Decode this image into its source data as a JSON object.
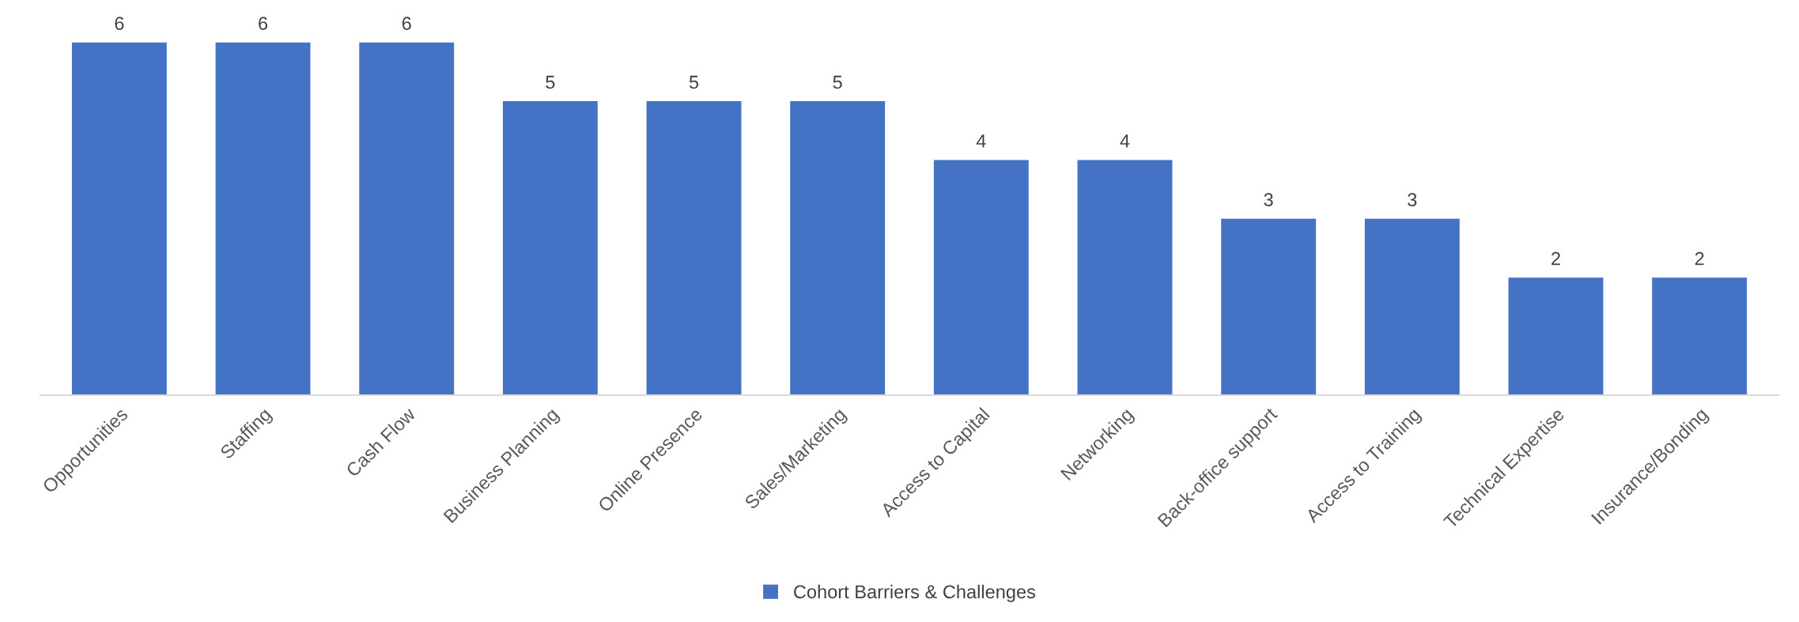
{
  "chart_data": {
    "type": "bar",
    "categories": [
      "Opportunities",
      "Staffing",
      "Cash Flow",
      "Business Planning",
      "Online Presence",
      "Sales/Marketing",
      "Access to Capital",
      "Networking",
      "Back-office support",
      "Access to Training",
      "Technical Expertise",
      "Insurance/Bonding"
    ],
    "series": [
      {
        "name": "Cohort Barriers & Challenges",
        "color": "#4472c4",
        "values": [
          6,
          6,
          6,
          5,
          5,
          5,
          4,
          4,
          3,
          3,
          2,
          2
        ]
      }
    ],
    "data_labels": true,
    "legend": "bottom"
  }
}
